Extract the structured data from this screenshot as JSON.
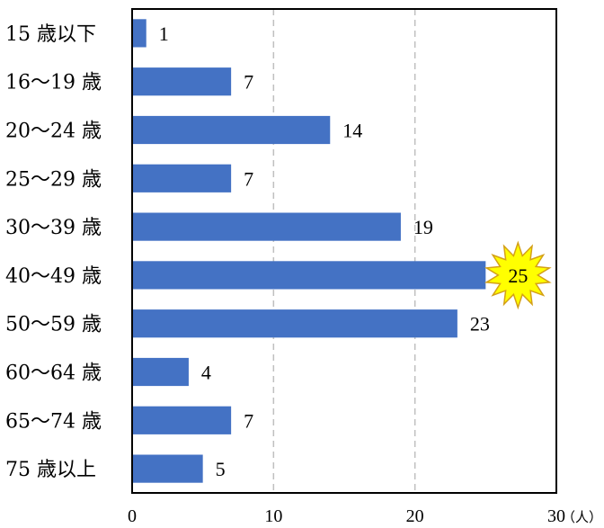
{
  "chart_data": {
    "type": "bar",
    "orientation": "horizontal",
    "categories": [
      "15 歳以下",
      "16〜19 歳",
      "20〜24 歳",
      "25〜29 歳",
      "30〜39 歳",
      "40〜49 歳",
      "50〜59 歳",
      "60〜64 歳",
      "65〜74 歳",
      "75 歳以上"
    ],
    "values": [
      1,
      7,
      14,
      7,
      19,
      25,
      23,
      4,
      7,
      5
    ],
    "data_labels": [
      "1",
      "7",
      "14",
      "7",
      "19",
      "25",
      "23",
      "4",
      "7",
      "5"
    ],
    "xlim": [
      0,
      30
    ],
    "x_ticks": [
      "0",
      "10",
      "20",
      "30"
    ],
    "x_unit": "（人）",
    "highlight_category": "40〜49 歳",
    "grid": "vertical dashed",
    "colors": {
      "bar": "#4472C4",
      "highlight_fill": "#FFFF00",
      "highlight_stroke": "#D4A017",
      "grid": "#BFBFBF"
    }
  }
}
